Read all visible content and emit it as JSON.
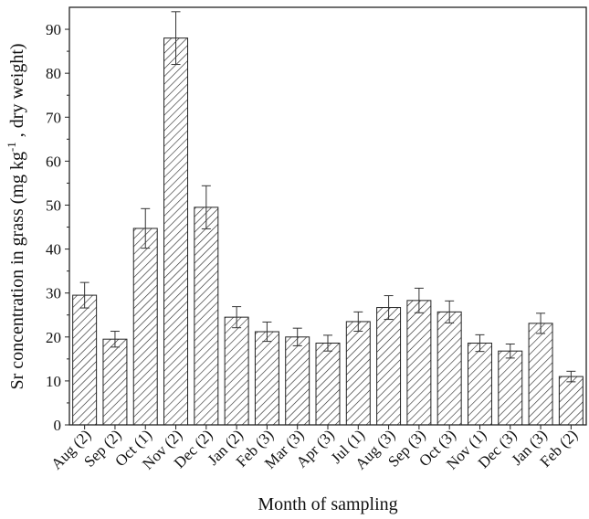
{
  "chart_data": {
    "type": "bar",
    "xlabel": "Month of sampling",
    "ylabel": "Sr concentration in grass (mg kg",
    "ylabel_sup": "-1",
    "ylabel_tail": " , dry weight)",
    "ylim": [
      0,
      95
    ],
    "yticks": [
      0,
      10,
      20,
      30,
      40,
      50,
      60,
      70,
      80,
      90
    ],
    "ytick_labels": [
      "0",
      "10",
      "20",
      "30",
      "40",
      "50",
      "60",
      "70",
      "80",
      "90"
    ],
    "grid": false,
    "bar_fill": "hatched",
    "bar_color": "#222222",
    "categories": [
      "Aug (2)",
      "Sep (2)",
      "Oct (1)",
      "Nov (2)",
      "Dec (2)",
      "Jan (2)",
      "Feb (3)",
      "Mar (3)",
      "Apr (3)",
      "Jul (1)",
      "Aug (3)",
      "Sep (3)",
      "Oct (3)",
      "Nov (1)",
      "Dec (3)",
      "Jan (3)",
      "Feb (2)"
    ],
    "values": [
      29.5,
      19.5,
      44.7,
      88.0,
      49.5,
      24.5,
      21.2,
      20.0,
      18.6,
      23.5,
      26.7,
      28.3,
      25.7,
      18.6,
      16.8,
      23.1,
      11.0
    ],
    "errors": [
      2.9,
      1.8,
      4.5,
      6.0,
      4.9,
      2.4,
      2.2,
      2.0,
      1.8,
      2.2,
      2.7,
      2.8,
      2.5,
      1.9,
      1.6,
      2.3,
      1.2
    ]
  }
}
